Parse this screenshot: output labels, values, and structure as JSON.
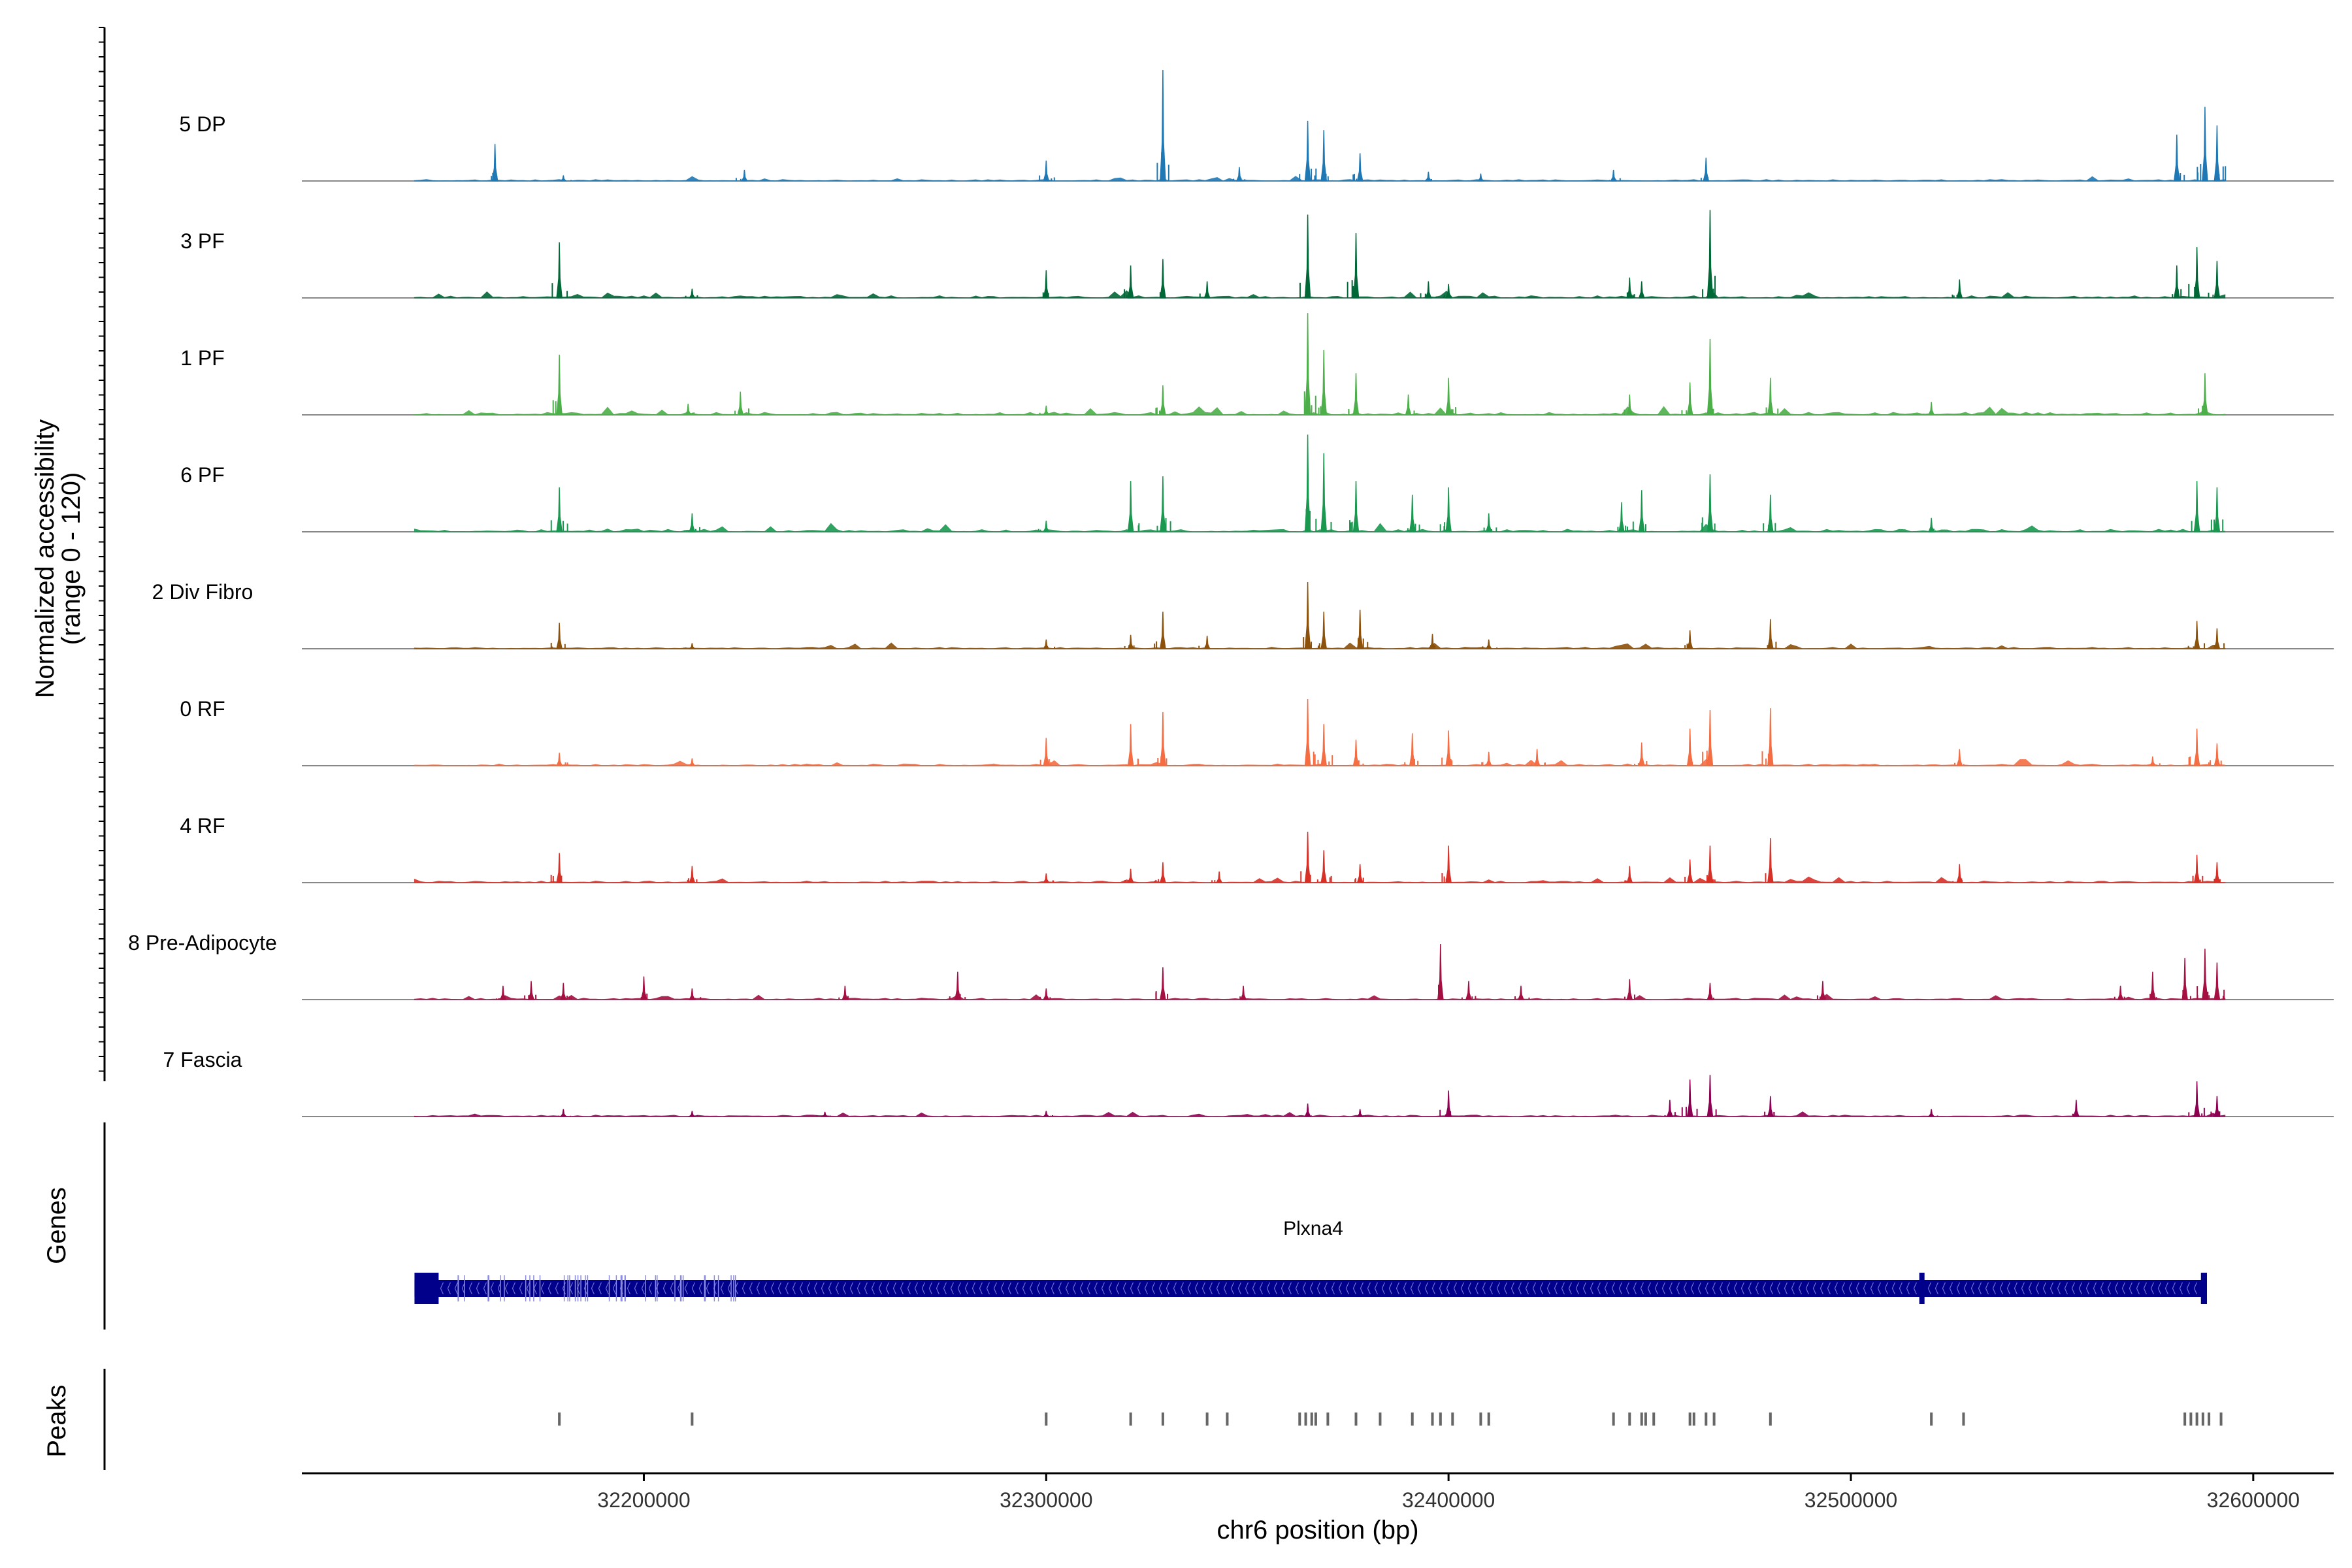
{
  "chart_data": {
    "type": "area",
    "xlabel": "chr6 position (bp)",
    "ylabel_line1": "Normalized accessibility",
    "ylabel_line2": "(range 0 - 120)",
    "y_range": [
      0,
      120
    ],
    "x_range": [
      32115000,
      32620000
    ],
    "x_ticks": [
      32200000,
      32300000,
      32400000,
      32500000,
      32600000
    ],
    "x_tick_labels": [
      "32200000",
      "32300000",
      "32400000",
      "32500000",
      "32600000"
    ],
    "genes_label": "Genes",
    "peaks_label": "Peaks",
    "tracks": [
      {
        "name": "5 DP",
        "color": "#1F78B4",
        "scale": 0.55,
        "peaks": [
          [
            32163000,
            40
          ],
          [
            32180000,
            6
          ],
          [
            32225000,
            12
          ],
          [
            32300000,
            22
          ],
          [
            32329000,
            120
          ],
          [
            32348000,
            15
          ],
          [
            32365000,
            65
          ],
          [
            32369000,
            55
          ],
          [
            32378000,
            30
          ],
          [
            32395000,
            10
          ],
          [
            32408000,
            8
          ],
          [
            32441000,
            12
          ],
          [
            32464000,
            25
          ],
          [
            32581000,
            50
          ],
          [
            32588000,
            80
          ],
          [
            32591000,
            60
          ]
        ]
      },
      {
        "name": "3 PF",
        "color": "#006837",
        "scale": 0.85,
        "peaks": [
          [
            32179000,
            60
          ],
          [
            32212000,
            10
          ],
          [
            32300000,
            30
          ],
          [
            32321000,
            35
          ],
          [
            32329000,
            42
          ],
          [
            32340000,
            18
          ],
          [
            32365000,
            90
          ],
          [
            32377000,
            70
          ],
          [
            32395000,
            18
          ],
          [
            32400000,
            15
          ],
          [
            32445000,
            22
          ],
          [
            32448000,
            18
          ],
          [
            32465000,
            95
          ],
          [
            32527000,
            20
          ],
          [
            32581000,
            35
          ],
          [
            32586000,
            55
          ],
          [
            32591000,
            40
          ]
        ]
      },
      {
        "name": "1 PF",
        "color": "#4DAF4A",
        "scale": 1.0,
        "peaks": [
          [
            32179000,
            65
          ],
          [
            32211000,
            12
          ],
          [
            32224000,
            25
          ],
          [
            32300000,
            10
          ],
          [
            32329000,
            32
          ],
          [
            32365000,
            110
          ],
          [
            32369000,
            70
          ],
          [
            32377000,
            45
          ],
          [
            32390000,
            22
          ],
          [
            32400000,
            40
          ],
          [
            32445000,
            22
          ],
          [
            32460000,
            35
          ],
          [
            32465000,
            82
          ],
          [
            32480000,
            40
          ],
          [
            32520000,
            14
          ],
          [
            32588000,
            45
          ]
        ]
      },
      {
        "name": "6 PF",
        "color": "#1A9850",
        "scale": 1.0,
        "peaks": [
          [
            32179000,
            48
          ],
          [
            32212000,
            20
          ],
          [
            32300000,
            12
          ],
          [
            32321000,
            55
          ],
          [
            32329000,
            60
          ],
          [
            32365000,
            105
          ],
          [
            32369000,
            85
          ],
          [
            32377000,
            55
          ],
          [
            32391000,
            40
          ],
          [
            32400000,
            48
          ],
          [
            32410000,
            20
          ],
          [
            32443000,
            32
          ],
          [
            32448000,
            45
          ],
          [
            32465000,
            62
          ],
          [
            32480000,
            40
          ],
          [
            32520000,
            15
          ],
          [
            32586000,
            55
          ],
          [
            32591000,
            48
          ]
        ]
      },
      {
        "name": "2 Div Fibro",
        "color": "#8C510A",
        "scale": 0.6,
        "peaks": [
          [
            32179000,
            28
          ],
          [
            32212000,
            6
          ],
          [
            32300000,
            10
          ],
          [
            32321000,
            15
          ],
          [
            32329000,
            40
          ],
          [
            32340000,
            14
          ],
          [
            32365000,
            72
          ],
          [
            32369000,
            40
          ],
          [
            32378000,
            42
          ],
          [
            32396000,
            16
          ],
          [
            32410000,
            10
          ],
          [
            32460000,
            20
          ],
          [
            32480000,
            32
          ],
          [
            32586000,
            30
          ],
          [
            32591000,
            22
          ]
        ]
      },
      {
        "name": "0 RF",
        "color": "#F46D43",
        "scale": 0.7,
        "peaks": [
          [
            32179000,
            14
          ],
          [
            32212000,
            8
          ],
          [
            32300000,
            30
          ],
          [
            32321000,
            45
          ],
          [
            32329000,
            58
          ],
          [
            32365000,
            72
          ],
          [
            32369000,
            45
          ],
          [
            32377000,
            28
          ],
          [
            32391000,
            35
          ],
          [
            32400000,
            38
          ],
          [
            32410000,
            15
          ],
          [
            32422000,
            18
          ],
          [
            32448000,
            25
          ],
          [
            32460000,
            40
          ],
          [
            32465000,
            60
          ],
          [
            32480000,
            62
          ],
          [
            32527000,
            18
          ],
          [
            32575000,
            10
          ],
          [
            32586000,
            40
          ],
          [
            32591000,
            24
          ]
        ]
      },
      {
        "name": "4 RF",
        "color": "#D73027",
        "scale": 0.6,
        "peaks": [
          [
            32179000,
            32
          ],
          [
            32212000,
            18
          ],
          [
            32300000,
            10
          ],
          [
            32321000,
            15
          ],
          [
            32329000,
            22
          ],
          [
            32343000,
            12
          ],
          [
            32365000,
            55
          ],
          [
            32369000,
            35
          ],
          [
            32378000,
            20
          ],
          [
            32400000,
            40
          ],
          [
            32445000,
            18
          ],
          [
            32460000,
            25
          ],
          [
            32465000,
            40
          ],
          [
            32480000,
            48
          ],
          [
            32527000,
            20
          ],
          [
            32586000,
            30
          ],
          [
            32591000,
            22
          ]
        ]
      },
      {
        "name": "8 Pre-Adipocyte",
        "color": "#A50F41",
        "scale": 0.55,
        "peaks": [
          [
            32165000,
            15
          ],
          [
            32172000,
            20
          ],
          [
            32180000,
            18
          ],
          [
            32200000,
            25
          ],
          [
            32212000,
            12
          ],
          [
            32250000,
            15
          ],
          [
            32278000,
            30
          ],
          [
            32300000,
            12
          ],
          [
            32329000,
            35
          ],
          [
            32349000,
            15
          ],
          [
            32398000,
            60
          ],
          [
            32405000,
            20
          ],
          [
            32418000,
            15
          ],
          [
            32445000,
            22
          ],
          [
            32465000,
            18
          ],
          [
            32493000,
            20
          ],
          [
            32567000,
            15
          ],
          [
            32575000,
            30
          ],
          [
            32583000,
            45
          ],
          [
            32588000,
            55
          ],
          [
            32591000,
            40
          ]
        ]
      },
      {
        "name": "7 Fascia",
        "color": "#8E0152",
        "scale": 0.55,
        "peaks": [
          [
            32180000,
            8
          ],
          [
            32212000,
            6
          ],
          [
            32245000,
            5
          ],
          [
            32300000,
            6
          ],
          [
            32365000,
            14
          ],
          [
            32378000,
            8
          ],
          [
            32400000,
            28
          ],
          [
            32455000,
            18
          ],
          [
            32460000,
            40
          ],
          [
            32465000,
            45
          ],
          [
            32480000,
            22
          ],
          [
            32520000,
            8
          ],
          [
            32556000,
            18
          ],
          [
            32586000,
            38
          ],
          [
            32591000,
            22
          ]
        ]
      }
    ],
    "gene": {
      "name": "Plxna4",
      "color": "#00008B",
      "start": 32143000,
      "end": 32588000,
      "strand": "-",
      "exons": [
        [
          32143000,
          32149000
        ],
        [
          32517000,
          32518000
        ],
        [
          32587000,
          32588500
        ]
      ]
    },
    "peaks_track": {
      "color": "#666666",
      "positions": [
        32179000,
        32212000,
        32300000,
        32321000,
        32329000,
        32340000,
        32345000,
        32363000,
        32364500,
        32366000,
        32367000,
        32370000,
        32377000,
        32383000,
        32391000,
        32396000,
        32398000,
        32401000,
        32408000,
        32410000,
        32441000,
        32445000,
        32448000,
        32449000,
        32451000,
        32460000,
        32461000,
        32464000,
        32466000,
        32480000,
        32520000,
        32528000,
        32583000,
        32584500,
        32586000,
        32587500,
        32589000,
        32592000
      ]
    }
  }
}
